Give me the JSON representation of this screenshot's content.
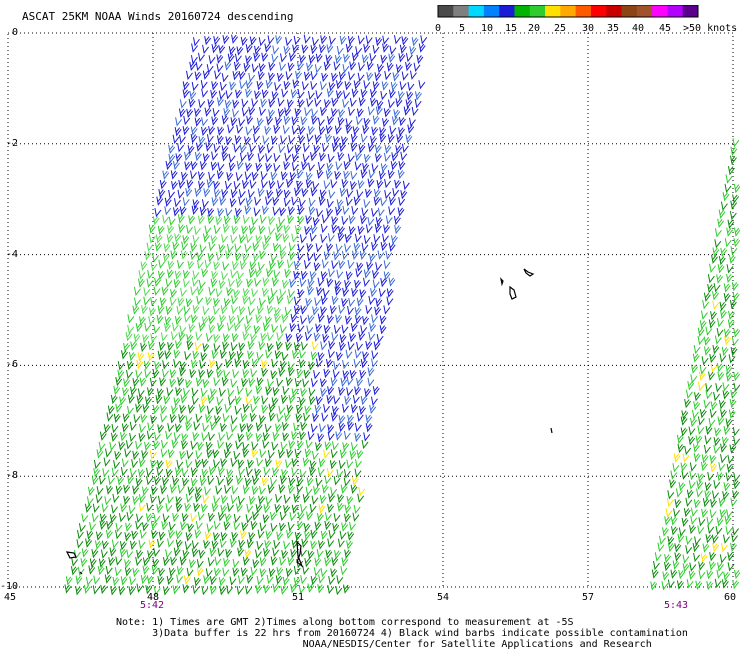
{
  "title": "ASCAT 25KM NOAA Winds 20160724 descending",
  "colorbar": {
    "labels": [
      "0",
      "5",
      "10",
      "15",
      "20",
      "25",
      "30",
      "35",
      "40",
      "45",
      ">50 knots"
    ],
    "colors": [
      "#4a4a4a",
      "#7f7f7f",
      "#00d8ff",
      "#0082ff",
      "#1b1bd8",
      "#00b400",
      "#2ecc2e",
      "#ffe000",
      "#ffa800",
      "#ff5a00",
      "#ff0000",
      "#c80000",
      "#8b4513",
      "#a0522d",
      "#ff00ff",
      "#b400ff",
      "#5a008c"
    ]
  },
  "axes": {
    "y_ticks": [
      "0",
      "-2",
      "-4",
      "-6",
      "-8",
      "-10"
    ],
    "x_ticks": [
      "45",
      "48",
      "51",
      "54",
      "57",
      "60"
    ],
    "lat_range": [
      -10,
      0
    ],
    "lon_range": [
      45,
      60
    ]
  },
  "times": [
    "5:42",
    "5:43"
  ],
  "notes": [
    "Note: 1) Times are GMT 2)Times along bottom correspond to measurement at -5S",
    "      3)Data buffer is 22 hrs from 20160724 4) Black wind barbs indicate possible contamination",
    "                               NOAA/NESDIS/Center for Satellite Applications and Research"
  ],
  "wind_colors": {
    "low": "#1b1bd8",
    "mid": "#2ecc2e",
    "dark": "#0a8a0a",
    "mixed": "#3a6bd8",
    "yellow": "#ffe000"
  }
}
